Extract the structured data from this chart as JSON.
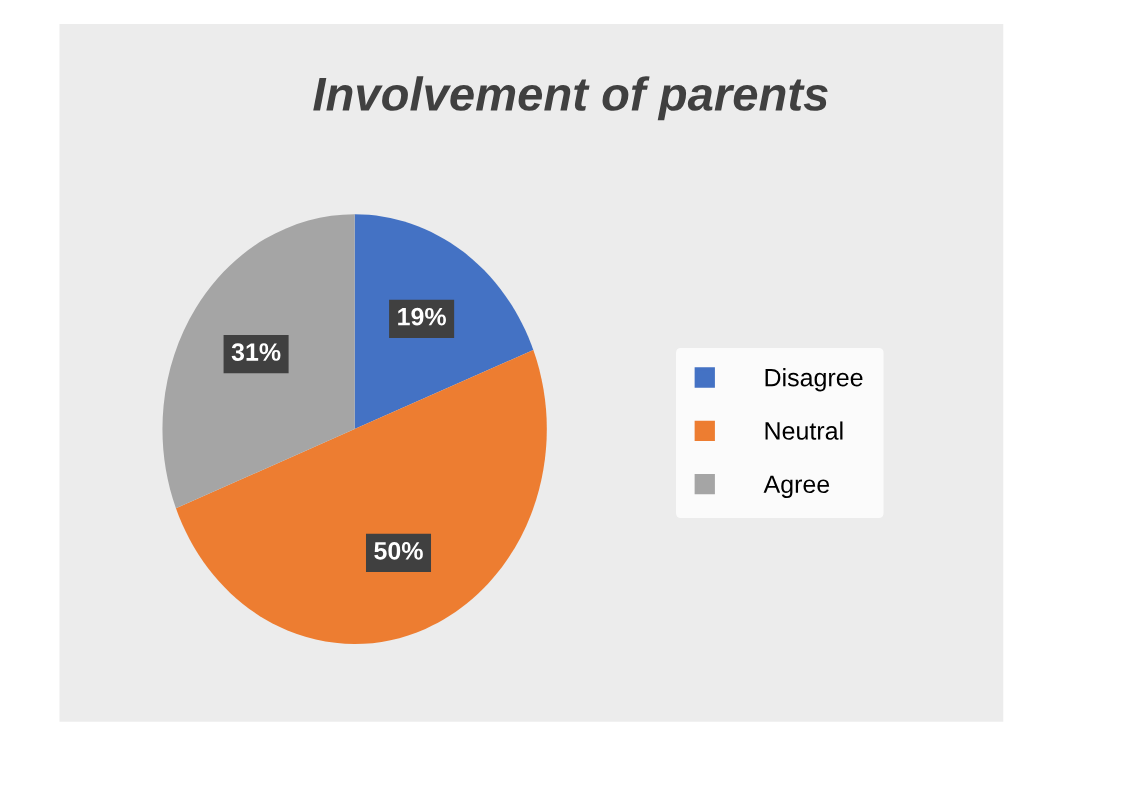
{
  "chart_data": {
    "type": "pie",
    "title": "Involvement of parents",
    "categories": [
      "Disagree",
      "Neutral",
      "Agree"
    ],
    "values": [
      19,
      50,
      31
    ],
    "colors": [
      "#4472c4",
      "#ed7d31",
      "#a5a5a5"
    ],
    "value_labels": [
      "19%",
      "50%",
      "31%"
    ],
    "legend": "right"
  }
}
